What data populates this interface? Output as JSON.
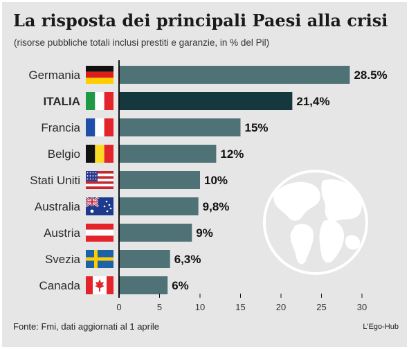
{
  "title": "La risposta dei principali Paesi alla crisi",
  "subtitle": "(risorse pubbliche totali inclusi prestiti e garanzie, in % del Pil)",
  "source": "Fonte: Fmi, dati aggiornati al 1 aprile",
  "credit": "L'Ego-Hub",
  "colors": {
    "bar": "#4f7277",
    "highlight": "#14383d",
    "background": "#e6e6e6"
  },
  "chart_data": {
    "type": "bar",
    "orientation": "horizontal",
    "categories": [
      "Germania",
      "ITALIA",
      "Francia",
      "Belgio",
      "Stati Uniti",
      "Australia",
      "Austria",
      "Svezia",
      "Canada"
    ],
    "values": [
      28.5,
      21.4,
      15,
      12,
      10,
      9.8,
      9,
      6.3,
      6
    ],
    "value_labels": [
      "28.5%",
      "21,4%",
      "15%",
      "12%",
      "10%",
      "9,8%",
      "9%",
      "6,3%",
      "6%"
    ],
    "highlight": "ITALIA",
    "flags": [
      "germany-flag-icon",
      "italy-flag-icon",
      "france-flag-icon",
      "belgium-flag-icon",
      "usa-flag-icon",
      "australia-flag-icon",
      "austria-flag-icon",
      "sweden-flag-icon",
      "canada-flag-icon"
    ],
    "xticks": [
      0,
      5,
      10,
      15,
      20,
      25,
      30
    ],
    "xlim": [
      0,
      30
    ],
    "grid": false
  }
}
